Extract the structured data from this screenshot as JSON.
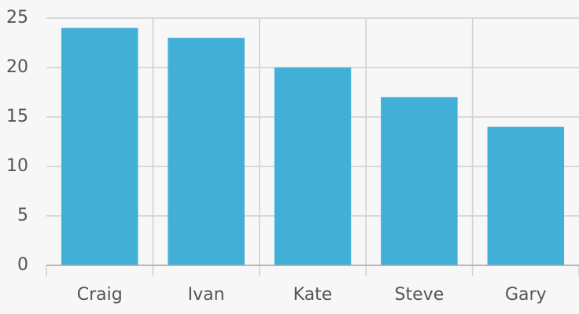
{
  "chart_data": {
    "type": "bar",
    "categories": [
      "Craig",
      "Ivan",
      "Kate",
      "Steve",
      "Gary"
    ],
    "values": [
      24,
      23,
      20,
      17,
      14
    ],
    "color": "#42afd6",
    "ylim": [
      0,
      25
    ],
    "yticks": [
      0,
      5,
      10,
      15,
      20,
      25
    ],
    "grid": true
  }
}
